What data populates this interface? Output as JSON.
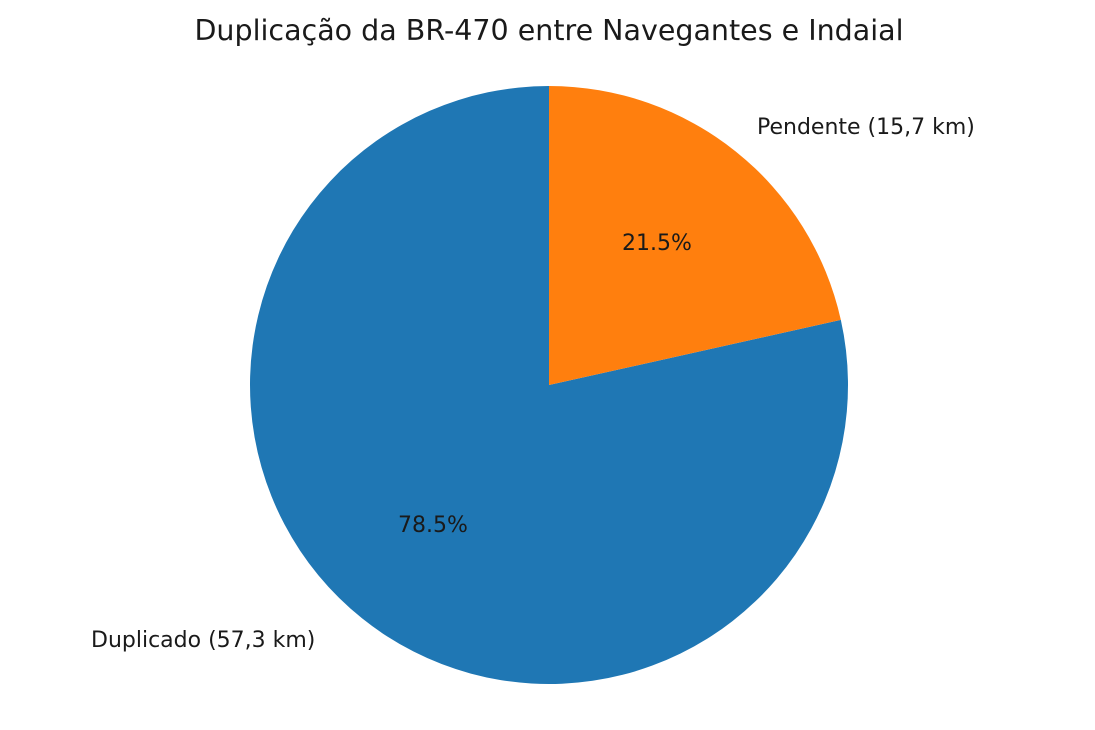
{
  "chart_data": {
    "type": "pie",
    "title": "Duplicação da BR-470 entre Navegantes e Indaial",
    "categories": [
      "Pendente (15,7 km)",
      "Duplicado (57,3 km)"
    ],
    "values": [
      15.7,
      57.3
    ],
    "percent_labels": [
      "21.5%",
      "78.5%"
    ],
    "colors": [
      "#ff7f0e",
      "#1f77b4"
    ],
    "start_angle": 90,
    "direction": "clockwise",
    "legend": false
  },
  "labels": {
    "title": "Duplicação da BR-470 entre Navegantes e Indaial",
    "pendente": "Pendente (15,7 km)",
    "duplicado": "Duplicado (57,3 km)",
    "pendente_pct": "21.5%",
    "duplicado_pct": "78.5%"
  }
}
